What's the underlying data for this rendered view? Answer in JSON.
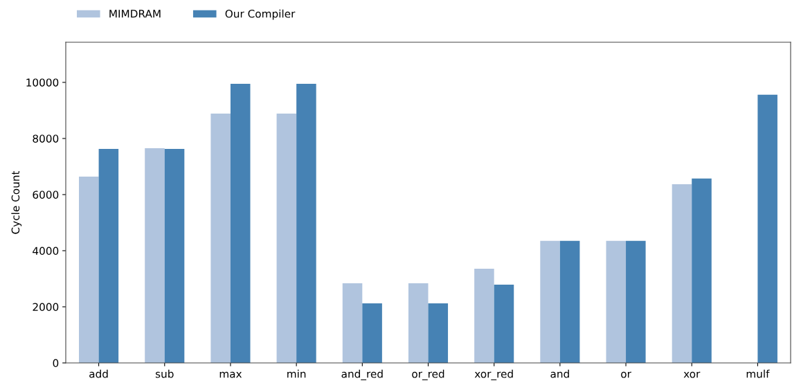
{
  "chart_data": {
    "type": "bar",
    "ylabel": "Cycle Count",
    "categories": [
      "add",
      "sub",
      "max",
      "min",
      "and_red",
      "or_red",
      "xor_red",
      "and",
      "or",
      "xor",
      "mulf"
    ],
    "series": [
      {
        "name": "MIMDRAM",
        "color": "#b0c4de",
        "values": [
          6640,
          7650,
          8890,
          8890,
          2840,
          2840,
          3360,
          4350,
          4350,
          6370,
          null
        ]
      },
      {
        "name": "Our Compiler",
        "color": "#4682b4",
        "values": [
          7630,
          7630,
          9950,
          9950,
          2120,
          2120,
          2790,
          4350,
          4350,
          6570,
          9560
        ]
      }
    ],
    "ylim": [
      0,
      11430
    ],
    "yticks": [
      0,
      2000,
      4000,
      6000,
      8000,
      10000
    ],
    "grid": false,
    "legend": "top left"
  }
}
